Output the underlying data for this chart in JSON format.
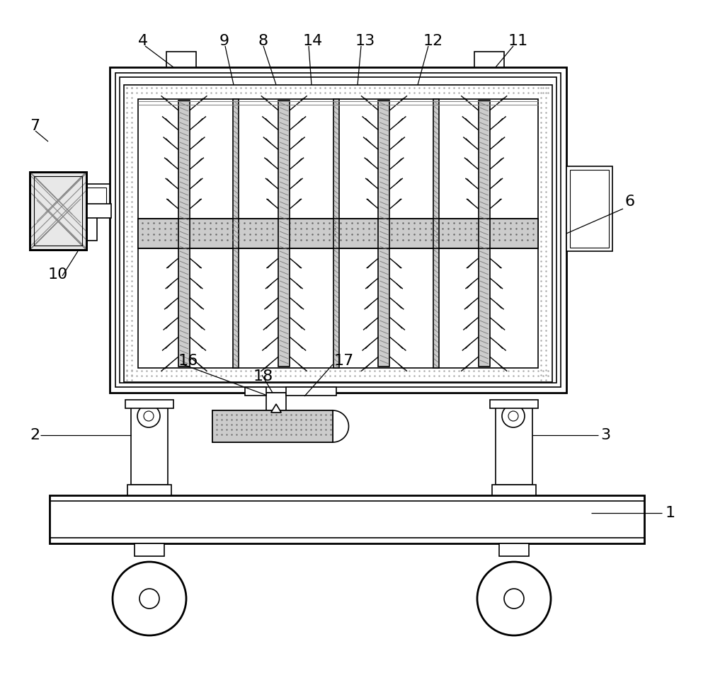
{
  "bg_color": "#ffffff",
  "lc": "#000000",
  "gray_fill": "#d4d4d4",
  "dot_color": "#888888",
  "label_fontsize": 16,
  "fig_w": 10.0,
  "fig_h": 9.61,
  "dpi": 100
}
